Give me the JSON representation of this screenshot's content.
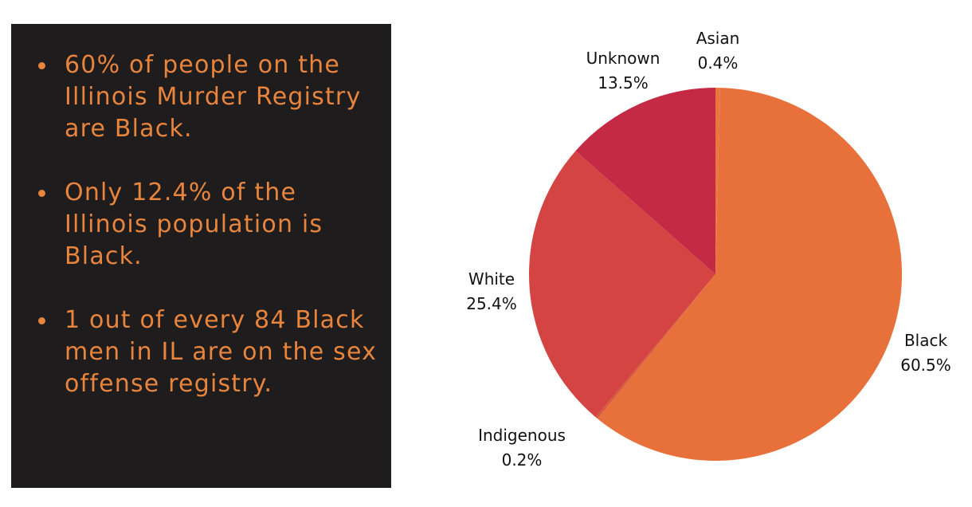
{
  "bullets": [
    "60% of people on the Illinois Murder Registry are Black.",
    "Only 12.4% of the Illinois population is Black.",
    "1 out of every 84 Black men in IL are on the sex offense registry."
  ],
  "colors": {
    "panel_bg": "#1e1c1c",
    "bullet_text": "#e8843c"
  },
  "chart_data": {
    "type": "pie",
    "title": "",
    "start_angle_deg": 0,
    "direction": "clockwise",
    "slices": [
      {
        "label": "Asian",
        "value_label": "0.4%",
        "value": 0.4,
        "color": "#e8763d"
      },
      {
        "label": "Black",
        "value_label": "60.5%",
        "value": 60.5,
        "color": "#e8703a"
      },
      {
        "label": "Indigenous",
        "value_label": "0.2%",
        "value": 0.2,
        "color": "#d75a3c"
      },
      {
        "label": "White",
        "value_label": "25.4%",
        "value": 25.4,
        "color": "#d44442"
      },
      {
        "label": "Unknown",
        "value_label": "13.5%",
        "value": 13.5,
        "color": "#c52a44"
      }
    ]
  }
}
